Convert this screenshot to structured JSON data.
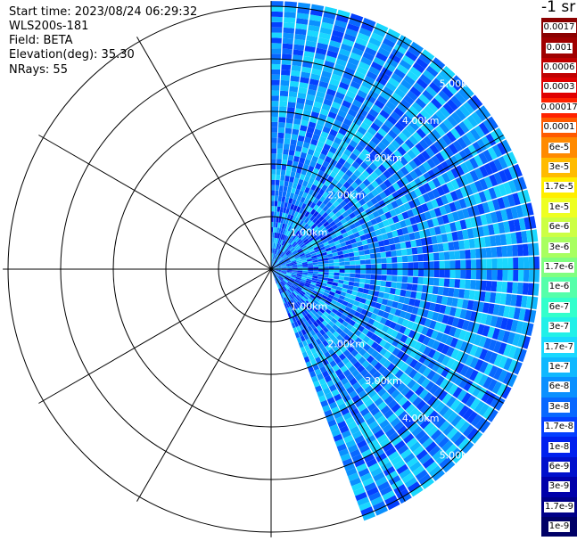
{
  "header": {
    "start_time": "Start time: 2023/08/24 06:29:32",
    "instrument": "WLS200s-181",
    "field": "Field: BETA",
    "elevation": "Elevation(deg): 35.30",
    "nrays": "NRays: 55"
  },
  "colorbar": {
    "title": "-1 sr",
    "entries": [
      {
        "label": "0.0017",
        "color": "#8b0000"
      },
      {
        "label": "0.001",
        "color": "#a00000"
      },
      {
        "label": "0.0006",
        "color": "#c00000"
      },
      {
        "label": "0.0003",
        "color": "#e00000"
      },
      {
        "label": "0.00017",
        "color": "#ff2200"
      },
      {
        "label": "0.0001",
        "color": "#ff5a00"
      },
      {
        "label": "6e-5",
        "color": "#ff8a00"
      },
      {
        "label": "3e-5",
        "color": "#ffbb00"
      },
      {
        "label": "1.7e-5",
        "color": "#ffee00"
      },
      {
        "label": "1e-5",
        "color": "#eeff22"
      },
      {
        "label": "6e-6",
        "color": "#ccff44"
      },
      {
        "label": "3e-6",
        "color": "#a8ff60"
      },
      {
        "label": "1.7e-6",
        "color": "#80ff80"
      },
      {
        "label": "1e-6",
        "color": "#55ffaa"
      },
      {
        "label": "6e-7",
        "color": "#33ffcc"
      },
      {
        "label": "3e-7",
        "color": "#22f0e8"
      },
      {
        "label": "1.7e-7",
        "color": "#1ad8ff"
      },
      {
        "label": "1e-7",
        "color": "#10b8ff"
      },
      {
        "label": "6e-8",
        "color": "#0a90ff"
      },
      {
        "label": "3e-8",
        "color": "#0868ff"
      },
      {
        "label": "1.7e-8",
        "color": "#0440ff"
      },
      {
        "label": "1e-8",
        "color": "#0020ee"
      },
      {
        "label": "6e-9",
        "color": "#0010cc"
      },
      {
        "label": "3e-9",
        "color": "#0000aa"
      },
      {
        "label": "1.7e-9",
        "color": "#000088"
      },
      {
        "label": "1e-9",
        "color": "#000066"
      }
    ]
  },
  "chart_data": {
    "type": "heatmap",
    "projection": "polar-ppi",
    "range_ring_labels": [
      "1.00km",
      "2.00km",
      "3.00km",
      "4.00km",
      "5.00km"
    ],
    "range_rings_km": [
      1,
      2,
      3,
      4,
      5
    ],
    "max_range_km": 5.1,
    "azimuth_start_deg": 0,
    "azimuth_end_deg": 160,
    "nrays": 55,
    "value_scale": "log",
    "value_range": [
      1e-09,
      0.0017
    ],
    "dominant_value_range": [
      3e-08,
      3e-07
    ],
    "colors": {
      "dominant": [
        "#1ad8ff",
        "#10b8ff",
        "#0a90ff",
        "#0868ff",
        "#0440ff"
      ],
      "sparse_low": "#0020ee",
      "grid": "#000000",
      "ray_gap": "#ffffff"
    }
  }
}
